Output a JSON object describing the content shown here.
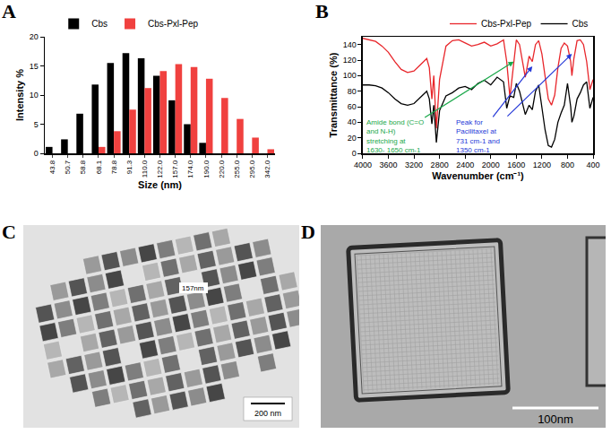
{
  "chart_data": [
    {
      "panel": "A",
      "type": "bar",
      "x_label": "Size (nm)",
      "y_label": "Intensity %",
      "categories": [
        "43.8",
        "50.7",
        "58.8",
        "68.1",
        "78.8",
        "91.3",
        "110.0",
        "122.0",
        "157.0",
        "174.0",
        "190.0",
        "220.0",
        "255.0",
        "295.0",
        "342.0"
      ],
      "series": [
        {
          "name": "Cbs",
          "color": "#000000",
          "values": [
            1.1,
            2.4,
            6.8,
            11.8,
            15.5,
            17.2,
            16.3,
            13.3,
            9.1,
            5.0,
            1.8,
            null,
            null,
            null,
            null
          ]
        },
        {
          "name": "Cbs-Pxl-Pep",
          "color": "#f0413f",
          "values": [
            null,
            null,
            null,
            1.1,
            3.8,
            7.5,
            11.2,
            14.1,
            15.3,
            14.8,
            12.8,
            9.5,
            5.9,
            2.7,
            0.7
          ]
        }
      ],
      "ylim": [
        0,
        20
      ],
      "yticks": [
        0,
        5,
        10,
        15,
        20
      ],
      "grid": false,
      "legend": "top left"
    },
    {
      "panel": "B",
      "type": "line",
      "x_label": "Wavenumber (cm⁻¹)",
      "y_label": "Transmittance (%)",
      "x": [
        4000,
        3900,
        3800,
        3700,
        3600,
        3500,
        3400,
        3300,
        3200,
        3100,
        3000,
        2960,
        2920,
        2890,
        2850,
        2800,
        2700,
        2600,
        2500,
        2400,
        2300,
        2200,
        2100,
        2000,
        1900,
        1800,
        1750,
        1700,
        1640,
        1600,
        1550,
        1460,
        1400,
        1350,
        1300,
        1250,
        1200,
        1150,
        1100,
        1050,
        1000,
        950,
        900,
        850,
        800,
        750,
        731,
        700,
        650,
        600,
        550,
        500,
        450,
        400
      ],
      "series": [
        {
          "name": "Cbs-Pxl-Pep",
          "color": "#e8262b",
          "values": [
            148,
            146,
            144,
            138,
            130,
            118,
            108,
            104,
            106,
            114,
            122,
            110,
            70,
            100,
            32,
            95,
            138,
            145,
            146,
            142,
            138,
            140,
            143,
            138,
            141,
            146,
            118,
            72,
            120,
            146,
            140,
            98,
            125,
            118,
            140,
            145,
            128,
            100,
            70,
            62,
            75,
            110,
            135,
            142,
            138,
            118,
            100,
            122,
            145,
            146,
            140,
            118,
            82,
            95
          ]
        },
        {
          "name": "Cbs",
          "color": "#000000",
          "values": [
            88,
            88,
            87,
            84,
            78,
            70,
            64,
            62,
            64,
            72,
            80,
            70,
            38,
            62,
            14,
            55,
            74,
            78,
            84,
            86,
            82,
            90,
            94,
            88,
            98,
            92,
            58,
            74,
            72,
            90,
            80,
            50,
            62,
            56,
            80,
            88,
            60,
            30,
            10,
            8,
            18,
            40,
            52,
            62,
            90,
            60,
            40,
            48,
            70,
            78,
            88,
            92,
            58,
            72
          ]
        }
      ],
      "xlim": [
        4000,
        400
      ],
      "xticks": [
        4000,
        3600,
        3200,
        2800,
        2400,
        2000,
        1600,
        1200,
        800,
        400
      ],
      "ylim": [
        0,
        150
      ],
      "yticks": [
        0,
        20,
        40,
        60,
        80,
        100,
        120,
        140
      ],
      "grid": false,
      "legend": "top right",
      "annotations": [
        {
          "text": "Amide bond (C=O and N-H) stretching at 1630- 1650 cm-1",
          "color": "#1aa84a",
          "x": [
            1640
          ],
          "y": [
            118
          ]
        },
        {
          "text": "Peak for Pacilitaxel at 731 cm-1 and 1350 cm-1",
          "color": "#2438d8",
          "x": [
            1350,
            731
          ],
          "y": [
            112,
            128
          ]
        }
      ]
    }
  ],
  "images": [
    {
      "panel": "C",
      "labels": [
        "157nm"
      ],
      "scale_bar": "200 nm"
    },
    {
      "panel": "D",
      "scale_bar": "100nm"
    }
  ]
}
